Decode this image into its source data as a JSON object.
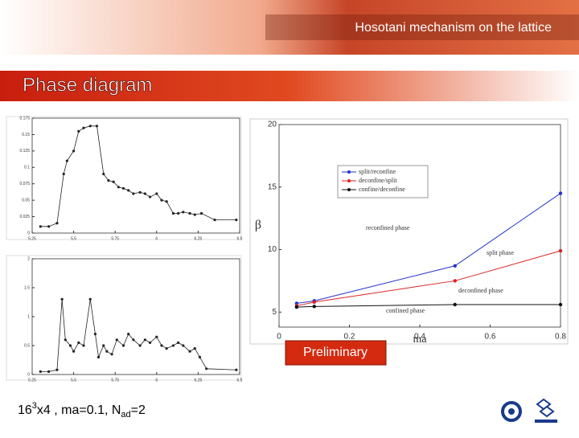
{
  "header": "Hosotani mechanism on the lattice",
  "title": "Phase diagram",
  "badge": "Preliminary",
  "footnote": [
    "16",
    "3",
    "x4 , ma=0.1, N",
    "ad",
    "=2"
  ],
  "chart_data": [
    {
      "type": "line",
      "xlim": [
        5.25,
        6.5
      ],
      "xticks": [
        5.25,
        5.5,
        5.75,
        6,
        6.25,
        6.5
      ],
      "ylim": [
        0,
        0.175
      ],
      "yticks": [
        0,
        0.025,
        0.05,
        0.075,
        0.1,
        0.125,
        0.15,
        0.175
      ],
      "series": [
        {
          "color": "#222222",
          "x": [
            5.3,
            5.35,
            5.4,
            5.44,
            5.46,
            5.5,
            5.53,
            5.56,
            5.6,
            5.64,
            5.68,
            5.71,
            5.74,
            5.77,
            5.8,
            5.83,
            5.86,
            5.9,
            5.93,
            5.96,
            6.0,
            6.03,
            6.06,
            6.1,
            6.13,
            6.16,
            6.2,
            6.23,
            6.27,
            6.35,
            6.48
          ],
          "values": [
            0.01,
            0.01,
            0.015,
            0.09,
            0.11,
            0.125,
            0.155,
            0.16,
            0.163,
            0.163,
            0.09,
            0.08,
            0.078,
            0.07,
            0.068,
            0.065,
            0.06,
            0.062,
            0.06,
            0.055,
            0.06,
            0.05,
            0.048,
            0.03,
            0.03,
            0.032,
            0.03,
            0.028,
            0.03,
            0.02,
            0.02
          ]
        }
      ]
    },
    {
      "type": "line",
      "xlim": [
        5.25,
        6.5
      ],
      "xticks": [
        5.25,
        5.5,
        5.75,
        6,
        6.25,
        6.5
      ],
      "ylim": [
        0,
        2
      ],
      "yticks": [
        0,
        0.5,
        1,
        1.5,
        2
      ],
      "series": [
        {
          "color": "#222222",
          "x": [
            5.3,
            5.35,
            5.4,
            5.43,
            5.45,
            5.48,
            5.5,
            5.53,
            5.56,
            5.6,
            5.63,
            5.65,
            5.68,
            5.7,
            5.73,
            5.76,
            5.8,
            5.83,
            5.86,
            5.9,
            5.93,
            5.96,
            6.0,
            6.03,
            6.06,
            6.1,
            6.13,
            6.16,
            6.2,
            6.23,
            6.26,
            6.3,
            6.48
          ],
          "values": [
            0.05,
            0.05,
            0.08,
            1.3,
            0.6,
            0.5,
            0.4,
            0.55,
            0.5,
            1.3,
            0.7,
            0.3,
            0.5,
            0.4,
            0.35,
            0.6,
            0.5,
            0.7,
            0.6,
            0.5,
            0.6,
            0.55,
            0.65,
            0.5,
            0.45,
            0.5,
            0.55,
            0.5,
            0.4,
            0.45,
            0.3,
            0.1,
            0.08
          ]
        }
      ]
    },
    {
      "type": "line",
      "xlabel": "ma",
      "ylabel": "β",
      "xlim": [
        0,
        0.8
      ],
      "xticks": [
        0,
        0.2,
        0.4,
        0.6,
        0.8
      ],
      "ylim": [
        3.8,
        20
      ],
      "yticks": [
        5,
        10,
        15,
        20
      ],
      "series": [
        {
          "name": "split/reconfine",
          "color": "#2233cc",
          "x": [
            0.05,
            0.1,
            0.5,
            0.8
          ],
          "values": [
            5.7,
            5.9,
            8.7,
            14.5
          ]
        },
        {
          "name": "deconfine/split",
          "color": "#dd2222",
          "x": [
            0.05,
            0.1,
            0.5,
            0.8
          ],
          "values": [
            5.5,
            5.8,
            7.5,
            9.9
          ]
        },
        {
          "name": "confine/deconfine",
          "color": "#111111",
          "x": [
            0.05,
            0.1,
            0.5,
            0.8
          ],
          "values": [
            5.4,
            5.45,
            5.6,
            5.6
          ]
        }
      ],
      "annotations": [
        "reconfined phase",
        "split phase",
        "deconfined phase",
        "confined phase"
      ]
    }
  ]
}
